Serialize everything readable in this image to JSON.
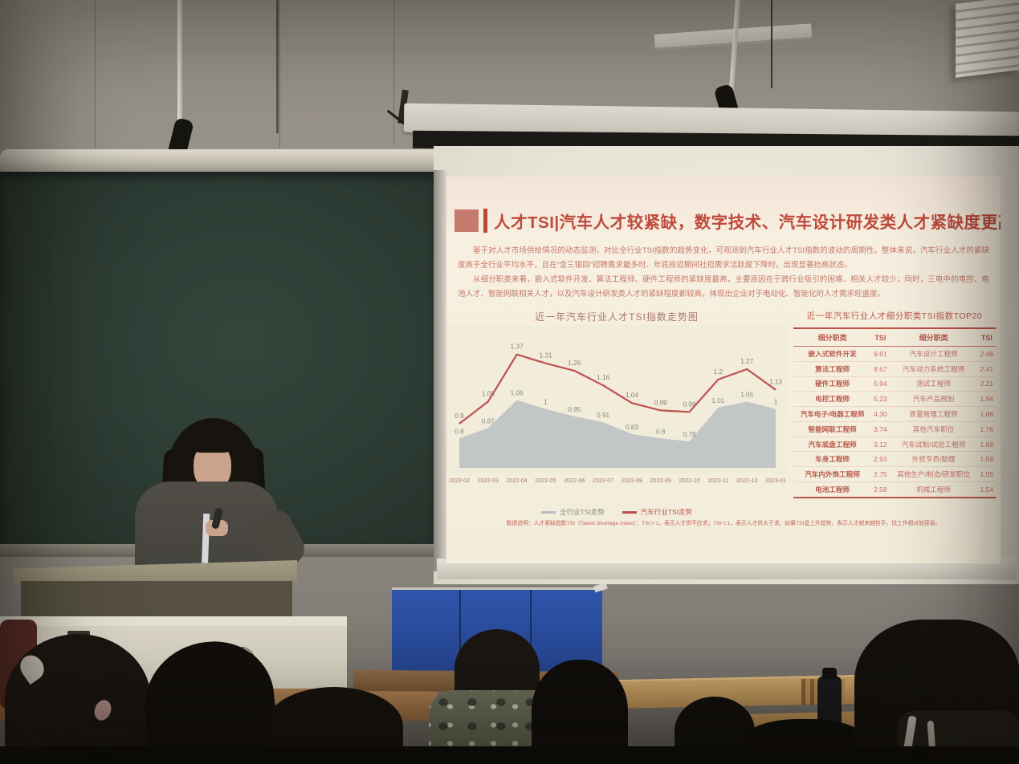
{
  "scene": {
    "description": "University classroom lecture: presenter at podium beside green chalkboard, slide projected on screen, students watching",
    "colors": {
      "wall": "#979288",
      "blackboard": "#2c3b33",
      "screen": "#e9e5d9",
      "slide_bg": "#f6efdd",
      "accent_red": "#bf4a3c",
      "blue_panel": "#2c4da0",
      "wood": "#c3995e"
    }
  },
  "slide": {
    "title": "人才TSI|汽车人才较紧缺，数字技术、汽车设计研发类人才紧缺度更高",
    "paragraphs": [
      "基于对人才市场供给情况的动态监测，对比全行业TSI指数的趋势变化，可观测到汽车行业人才TSI指数的波动的周期性。整体来说，汽车行业人才的紧缺度高于全行业平均水平，且在“金三银四”招聘需求最多时、年底校招期间社招需求活跃度下降时，出现显著抬高状态。",
      "从细分职类来看，嵌入式软件开发、算法工程师、硬件工程师的紧缺度最高，主要原因在于跨行业吸引的困难、相关人才较少；同时，三电中的电控、电池人才、智能网联相关人才，以及汽车设计研发类人才的紧缺程度都较高，体现出企业对于电动化、智能化的人才需求旺盛度。"
    ],
    "chart_title": "近一年汽车行业人才TSI指数走势图",
    "legend": [
      {
        "label": "全行业TSI走势",
        "color": "#b7bcc0"
      },
      {
        "label": "汽车行业TSI走势",
        "color": "#c0504d"
      }
    ],
    "table": {
      "title": "近一年汽车行业人才细分职类TSI指数TOP20",
      "headers": [
        "细分职类",
        "TSI",
        "细分职类",
        "TSI"
      ],
      "rows": [
        [
          "嵌入式软件开发",
          "9.61",
          "汽车设计工程师",
          "2.46"
        ],
        [
          "算法工程师",
          "8.67",
          "汽车动力系统工程师",
          "2.41"
        ],
        [
          "硬件工程师",
          "5.94",
          "测试工程师",
          "2.21"
        ],
        [
          "电控工程师",
          "5.23",
          "汽车产品规划",
          "1.94"
        ],
        [
          "汽车电子/电器工程师",
          "4.30",
          "质量管理工程师",
          "1.86"
        ],
        [
          "智能网联工程师",
          "3.74",
          "其他汽车职位",
          "1.76"
        ],
        [
          "汽车底盘工程师",
          "3.12",
          "汽车试制/试验工程师",
          "1.69"
        ],
        [
          "车身工程师",
          "2.93",
          "外贸专员/助理",
          "1.59"
        ],
        [
          "汽车内外饰工程师",
          "2.75",
          "其他生产/制造/研发职位",
          "1.55"
        ],
        [
          "电池工程师",
          "2.58",
          "机械工程师",
          "1.54"
        ]
      ]
    },
    "footnote": "数据说明：人才紧缺指数TSI（Talent Shortage Index）：TSI＞1，表示人才供不应求；TSI＜1，表示人才供大于求。如果TSI呈上升趋势，表示人才越来越抢手，找工作相对较容易。"
  },
  "chart_data": {
    "type": "line",
    "title": "近一年汽车行业人才TSI指数走势图",
    "categories": [
      "2022-02",
      "2022-03",
      "2022-04",
      "2022-05",
      "2022-06",
      "2022-07",
      "2022-08",
      "2022-09",
      "2022-10",
      "2022-11",
      "2022-12",
      "2023-01"
    ],
    "series": [
      {
        "name": "全行业TSI走势",
        "type": "area",
        "color": "#b7bcc0",
        "values": [
          0.8,
          0.87,
          1.06,
          1,
          0.95,
          0.91,
          0.83,
          0.8,
          0.78,
          1.01,
          1.05,
          1
        ]
      },
      {
        "name": "汽车行业TSI走势",
        "type": "line",
        "color": "#c0504d",
        "values": [
          0.9,
          1.05,
          1.37,
          1.31,
          1.26,
          1.16,
          1.04,
          0.99,
          0.98,
          1.2,
          1.27,
          1.13
        ]
      }
    ],
    "ylim": [
      0.6,
      1.45
    ],
    "xlabel": "",
    "ylabel": "",
    "grid": false,
    "legend_position": "bottom"
  }
}
